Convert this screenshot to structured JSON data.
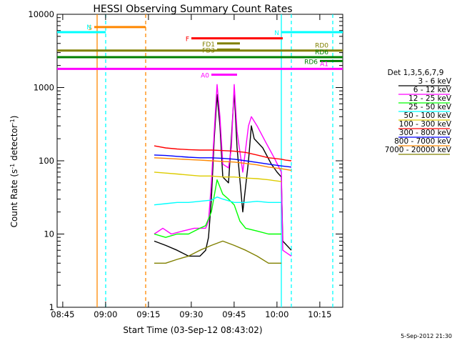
{
  "chart_data": {
    "type": "line",
    "title": "HESSI Observing Summary Count Rates",
    "xlabel": "Start Time (03-Sep-12 08:43:02)",
    "ylabel_main": "Count Rate (s",
    "ylabel_sup1": "-1",
    "ylabel_mid": " detector",
    "ylabel_sup2": "-1",
    "ylabel_end": ")",
    "x_unit": "minutes since 08:43:02",
    "xlim": [
      0,
      100
    ],
    "ylim": [
      1,
      10000
    ],
    "yscale": "log",
    "x_ticks": [
      {
        "t": 1.97,
        "label": "08:45"
      },
      {
        "t": 16.97,
        "label": "09:00"
      },
      {
        "t": 31.97,
        "label": "09:15"
      },
      {
        "t": 46.97,
        "label": "09:30"
      },
      {
        "t": 61.97,
        "label": "09:45"
      },
      {
        "t": 76.97,
        "label": "10:00"
      },
      {
        "t": 91.97,
        "label": "10:15"
      }
    ],
    "y_ticks": [
      {
        "v": 1,
        "label": "1"
      },
      {
        "v": 10,
        "label": "10"
      },
      {
        "v": 100,
        "label": "100"
      },
      {
        "v": 1000,
        "label": "1000"
      },
      {
        "v": 10000,
        "label": "10000"
      }
    ],
    "legend_title": "Det 1,3,5,6,7,9",
    "series": [
      {
        "name": "3 - 6 keV",
        "color": "#000000",
        "points": [
          [
            34,
            8
          ],
          [
            38,
            7
          ],
          [
            42,
            6
          ],
          [
            46,
            5
          ],
          [
            50,
            5
          ],
          [
            52,
            6
          ],
          [
            53,
            9
          ],
          [
            54,
            30
          ],
          [
            55,
            200
          ],
          [
            56,
            800
          ],
          [
            57,
            300
          ],
          [
            58,
            60
          ],
          [
            60,
            50
          ],
          [
            61,
            200
          ],
          [
            62,
            900
          ],
          [
            63,
            150
          ],
          [
            65,
            20
          ],
          [
            67,
            100
          ],
          [
            68,
            300
          ],
          [
            69,
            200
          ],
          [
            72,
            150
          ],
          [
            75,
            90
          ],
          [
            77,
            70
          ],
          [
            78.5,
            60
          ],
          [
            79,
            8
          ],
          [
            82,
            6
          ]
        ]
      },
      {
        "name": "6 - 12 keV",
        "color": "#ff00ff",
        "points": [
          [
            34,
            10
          ],
          [
            37,
            12
          ],
          [
            40,
            10
          ],
          [
            44,
            11
          ],
          [
            48,
            12
          ],
          [
            52,
            12
          ],
          [
            53,
            15
          ],
          [
            54,
            50
          ],
          [
            55,
            250
          ],
          [
            56,
            1100
          ],
          [
            57,
            400
          ],
          [
            58,
            90
          ],
          [
            60,
            80
          ],
          [
            61,
            150
          ],
          [
            62,
            1100
          ],
          [
            63,
            250
          ],
          [
            65,
            70
          ],
          [
            67,
            300
          ],
          [
            68,
            400
          ],
          [
            70,
            300
          ],
          [
            73,
            180
          ],
          [
            76,
            110
          ],
          [
            78.5,
            70
          ],
          [
            79,
            6
          ],
          [
            82,
            5
          ]
        ]
      },
      {
        "name": "12 - 25 keV",
        "color": "#00ff00",
        "points": [
          [
            34,
            10
          ],
          [
            38,
            9
          ],
          [
            42,
            10
          ],
          [
            46,
            10
          ],
          [
            50,
            12
          ],
          [
            52,
            13
          ],
          [
            54,
            20
          ],
          [
            56,
            55
          ],
          [
            58,
            35
          ],
          [
            60,
            30
          ],
          [
            62,
            25
          ],
          [
            64,
            15
          ],
          [
            66,
            12
          ],
          [
            70,
            11
          ],
          [
            74,
            10
          ],
          [
            77,
            10
          ],
          [
            78.5,
            10
          ]
        ]
      },
      {
        "name": "25 - 50 keV",
        "color": "#00ffff",
        "points": [
          [
            34,
            25
          ],
          [
            38,
            26
          ],
          [
            42,
            27
          ],
          [
            46,
            27
          ],
          [
            50,
            28
          ],
          [
            54,
            29
          ],
          [
            56,
            32
          ],
          [
            58,
            30
          ],
          [
            62,
            27
          ],
          [
            66,
            27
          ],
          [
            70,
            28
          ],
          [
            74,
            27
          ],
          [
            78.5,
            27
          ]
        ]
      },
      {
        "name": "50 - 100 keV",
        "color": "#ddcc00",
        "points": [
          [
            34,
            70
          ],
          [
            38,
            68
          ],
          [
            42,
            66
          ],
          [
            46,
            64
          ],
          [
            50,
            62
          ],
          [
            54,
            62
          ],
          [
            58,
            60
          ],
          [
            62,
            60
          ],
          [
            66,
            58
          ],
          [
            70,
            57
          ],
          [
            74,
            55
          ],
          [
            78.5,
            52
          ]
        ]
      },
      {
        "name": "100 - 300 keV",
        "color": "#ff0000",
        "points": [
          [
            34,
            160
          ],
          [
            38,
            150
          ],
          [
            42,
            145
          ],
          [
            46,
            142
          ],
          [
            50,
            140
          ],
          [
            54,
            140
          ],
          [
            58,
            138
          ],
          [
            62,
            135
          ],
          [
            66,
            130
          ],
          [
            70,
            120
          ],
          [
            74,
            110
          ],
          [
            78.5,
            105
          ],
          [
            80,
            102
          ],
          [
            82,
            100
          ]
        ]
      },
      {
        "name": "300 - 800 keV",
        "color": "#0000ff",
        "points": [
          [
            34,
            120
          ],
          [
            38,
            118
          ],
          [
            42,
            115
          ],
          [
            46,
            112
          ],
          [
            50,
            110
          ],
          [
            54,
            110
          ],
          [
            58,
            108
          ],
          [
            62,
            105
          ],
          [
            66,
            100
          ],
          [
            70,
            95
          ],
          [
            74,
            90
          ],
          [
            78.5,
            85
          ],
          [
            82,
            82
          ]
        ]
      },
      {
        "name": "800 - 7000 keV",
        "color": "#ff8800",
        "points": [
          [
            34,
            110
          ],
          [
            38,
            108
          ],
          [
            42,
            106
          ],
          [
            46,
            104
          ],
          [
            50,
            102
          ],
          [
            54,
            100
          ],
          [
            58,
            98
          ],
          [
            62,
            96
          ],
          [
            66,
            92
          ],
          [
            70,
            88
          ],
          [
            74,
            82
          ],
          [
            78.5,
            78
          ],
          [
            82,
            74
          ]
        ]
      },
      {
        "name": "7000 - 20000 keV",
        "color": "#808000",
        "points": [
          [
            34,
            4
          ],
          [
            38,
            4
          ],
          [
            42,
            4.5
          ],
          [
            46,
            5
          ],
          [
            50,
            6
          ],
          [
            54,
            7
          ],
          [
            58,
            8
          ],
          [
            62,
            7
          ],
          [
            66,
            6
          ],
          [
            70,
            5
          ],
          [
            74,
            4
          ],
          [
            78.5,
            4
          ]
        ]
      }
    ],
    "flag_bars": [
      {
        "label": "S",
        "color": "#ff8800",
        "x0": 13,
        "x1": 31,
        "y": 6700
      },
      {
        "label": "N",
        "color": "#00ffff",
        "x0": 0,
        "x1": 17,
        "y": 5700
      },
      {
        "label": "N",
        "color": "#00ffff",
        "x0": 78.5,
        "x1": 100,
        "y": 5700
      },
      {
        "label": "F",
        "color": "#ff0000",
        "x0": 47,
        "x1": 79,
        "y": 4700
      },
      {
        "label": "FD1",
        "color": "#808000",
        "x0": 56,
        "x1": 64,
        "y": 4000
      },
      {
        "label": "FD3",
        "color": "#808000",
        "x0": 56,
        "x1": 64,
        "y": 3300
      },
      {
        "label": "RD0",
        "color": "#808000",
        "x0": 0,
        "x1": 100,
        "y": 3200
      },
      {
        "label": "RD6",
        "color": "#008000",
        "x0": 0,
        "x1": 100,
        "y": 2600
      },
      {
        "label": "RD6",
        "color": "#008000",
        "x0": 92,
        "x1": 100,
        "y": 2300
      },
      {
        "label": "A1",
        "color": "#ff00ff",
        "x0": 0,
        "x1": 100,
        "y": 1800
      },
      {
        "label": "A0",
        "color": "#ff00ff",
        "x0": 54,
        "x1": 63,
        "y": 1500
      }
    ],
    "vertical_markers": [
      {
        "t": 14,
        "color": "#ff8800",
        "style": "solid"
      },
      {
        "t": 17,
        "color": "#00ffff",
        "style": "dashed"
      },
      {
        "t": 31,
        "color": "#ff8800",
        "style": "dashed"
      },
      {
        "t": 78.5,
        "color": "#00ffff",
        "style": "solid"
      },
      {
        "t": 82,
        "color": "#00ffff",
        "style": "dashed"
      },
      {
        "t": 96.5,
        "color": "#00ffff",
        "style": "dashed"
      }
    ],
    "footer_date": "5-Sep-2012 21:30"
  }
}
